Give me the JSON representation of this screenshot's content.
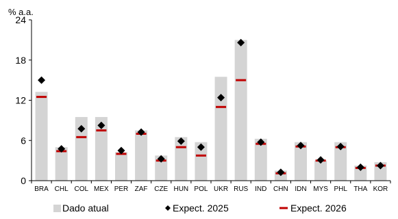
{
  "chart_data": {
    "type": "bar",
    "title": "",
    "ylabel": "% a.a.",
    "xlabel": "",
    "ylim": [
      0,
      24
    ],
    "yticks": [
      0,
      6,
      12,
      18,
      24
    ],
    "grid": false,
    "legend_position": "bottom",
    "categories": [
      "BRA",
      "CHL",
      "COL",
      "MEX",
      "PER",
      "ZAF",
      "CZE",
      "HUN",
      "POL",
      "UKR",
      "RUS",
      "IND",
      "CHN",
      "IDN",
      "MYS",
      "PHL",
      "THA",
      "KOR"
    ],
    "series": [
      {
        "name": "Dado atual",
        "type": "bar",
        "color": "#d4d4d4",
        "values": [
          13.25,
          5.0,
          9.5,
          9.5,
          4.25,
          7.5,
          3.75,
          6.5,
          5.75,
          15.5,
          21.0,
          6.25,
          1.5,
          5.75,
          3.0,
          5.75,
          2.25,
          2.75
        ]
      },
      {
        "name": "Expect. 2025",
        "type": "marker",
        "marker": "diamond",
        "color": "#000000",
        "values": [
          15.0,
          4.75,
          7.75,
          8.25,
          4.5,
          7.25,
          3.25,
          5.9,
          5.0,
          12.4,
          20.6,
          5.75,
          1.25,
          5.25,
          3.1,
          5.1,
          2.0,
          2.25
        ]
      },
      {
        "name": "Expect. 2026",
        "type": "dash",
        "color": "#c00000",
        "values": [
          12.5,
          4.4,
          6.5,
          7.5,
          4.0,
          7.0,
          3.0,
          5.0,
          3.75,
          11.0,
          15.0,
          5.5,
          1.1,
          5.1,
          3.0,
          5.0,
          1.9,
          2.25
        ]
      }
    ]
  }
}
